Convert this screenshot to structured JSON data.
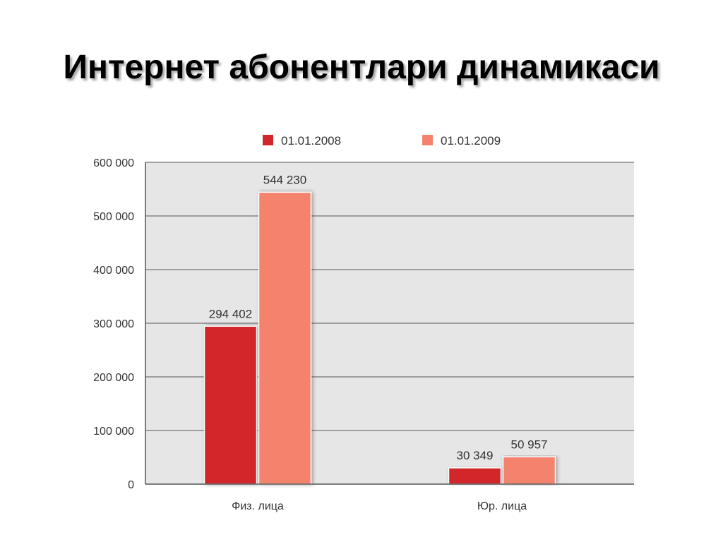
{
  "title": "Интернет абонентлари динамикаси",
  "colors": {
    "series_2008": "#d1262b",
    "series_2009": "#f4836e",
    "plot_bg": "#e6e6e6",
    "grid": "#555555"
  },
  "chart_data": {
    "type": "bar",
    "title": "",
    "categories": [
      "Физ. лица",
      "Юр. лица"
    ],
    "series": [
      {
        "name": "01.01.2008",
        "values": [
          294402,
          30349
        ],
        "labels": [
          "294 402",
          "30 349"
        ]
      },
      {
        "name": "01.01.2009",
        "values": [
          544230,
          50957
        ],
        "labels": [
          "544 230",
          "50 957"
        ]
      }
    ],
    "ylim": [
      0,
      600000
    ],
    "yticks": [
      0,
      100000,
      200000,
      300000,
      400000,
      500000,
      600000
    ],
    "ytick_labels": [
      "0",
      "100 000",
      "200 000",
      "300 000",
      "400 000",
      "500 000",
      "600 000"
    ],
    "xlabel": "",
    "ylabel": "",
    "grid": true,
    "legend": "top"
  }
}
